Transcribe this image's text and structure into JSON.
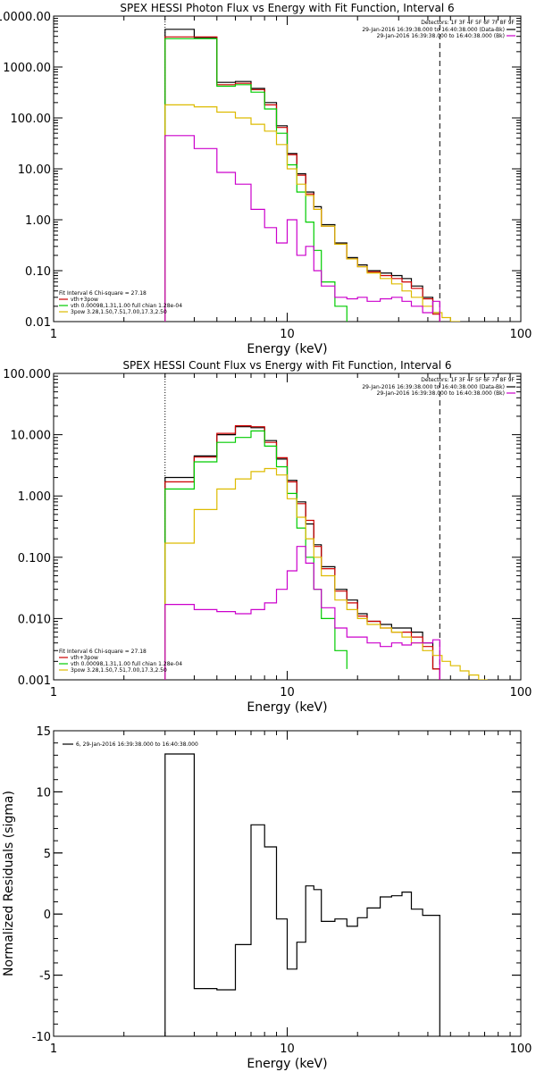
{
  "chart_data": [
    {
      "type": "line",
      "title": "SPEX HESSI Photon Flux vs Energy with Fit Function, Interval 6",
      "xlabel": "Energy (keV)",
      "ylabel": "",
      "xscale": "log",
      "yscale": "log",
      "xlim": [
        1,
        100
      ],
      "ylim": [
        0.01,
        10000
      ],
      "xticks": [
        {
          "v": 1,
          "label": "1"
        },
        {
          "v": 10,
          "label": "10"
        },
        {
          "v": 100,
          "label": "100"
        }
      ],
      "yticks": [
        {
          "v": 10000,
          "label": "10000.00"
        },
        {
          "v": 1000,
          "label": "1000.00"
        },
        {
          "v": 100,
          "label": "100.00"
        },
        {
          "v": 10,
          "label": "10.00"
        },
        {
          "v": 1,
          "label": "1.00"
        },
        {
          "v": 0.1,
          "label": "0.10"
        },
        {
          "v": 0.01,
          "label": "0.01"
        }
      ],
      "vlines": [
        {
          "x": 3.0,
          "style": "dotted"
        },
        {
          "x": 45,
          "style": "dashed"
        }
      ],
      "legend_topright": {
        "detectors": "Detectors: 1F 3F 4F 5F 6F 7F 8F 9F",
        "entries": [
          {
            "text": "29-Jan-2016 16:39:38.000 to 16:40:38.000 (Data-Bk)",
            "color": "#000000"
          },
          {
            "text": "29-Jan-2016 16:39:38.000 to 16:40:38.000 (Bk)",
            "color": "#cc00cc"
          }
        ]
      },
      "legend_bottomleft": {
        "header": "Fit Interval 6   Chi-square = 27.18",
        "entries": [
          {
            "text": "vth+3pow",
            "color": "#cc0000"
          },
          {
            "text": "vth 0.00098,1.31,1.00   full chian 1.28e-04",
            "color": "#00cc00"
          },
          {
            "text": "3pow 3.28,1.50,7.51,7.00,17.3,2.50",
            "color": "#ddbb00"
          }
        ]
      },
      "series": [
        {
          "color": "#000000",
          "edges": [
            3.0,
            4.0,
            5.0,
            6.0,
            7.0,
            8.0,
            9.0,
            10.0,
            11.0,
            12.0,
            13.0,
            14.0,
            16.0,
            18.0,
            20.0,
            22.0,
            25.0,
            28.0,
            31.0,
            34.0,
            38.0,
            42.0,
            45.0
          ],
          "values": [
            5500,
            3800,
            500,
            520,
            380,
            200,
            70,
            20,
            8,
            3.5,
            1.8,
            0.8,
            0.35,
            0.18,
            0.13,
            0.1,
            0.09,
            0.08,
            0.07,
            0.05,
            0.03,
            0.015
          ]
        },
        {
          "color": "#cc0000",
          "edges": [
            3.0,
            4.0,
            5.0,
            6.0,
            7.0,
            8.0,
            9.0,
            10.0,
            11.0,
            12.0,
            13.0,
            14.0,
            16.0,
            18.0,
            20.0,
            22.0,
            25.0,
            28.0,
            31.0,
            34.0,
            38.0,
            42.0,
            45.0
          ],
          "values": [
            3900,
            3900,
            450,
            480,
            360,
            180,
            65,
            19,
            7.5,
            3.2,
            1.6,
            0.75,
            0.33,
            0.17,
            0.12,
            0.095,
            0.08,
            0.07,
            0.06,
            0.045,
            0.028,
            0.014
          ]
        },
        {
          "color": "#00cc00",
          "edges": [
            3.0,
            4.0,
            5.0,
            6.0,
            7.0,
            8.0,
            9.0,
            10.0,
            11.0,
            12.0,
            13.0,
            14.0,
            16.0,
            18.0
          ],
          "values": [
            3600,
            3600,
            420,
            450,
            320,
            150,
            50,
            12,
            3.5,
            0.9,
            0.25,
            0.06,
            0.02
          ]
        },
        {
          "color": "#ddbb00",
          "edges": [
            3.0,
            4.0,
            5.0,
            6.0,
            7.0,
            8.0,
            9.0,
            10.0,
            11.0,
            12.0,
            13.0,
            14.0,
            16.0,
            18.0,
            20.0,
            22.0,
            25.0,
            28.0,
            31.0,
            34.0,
            38.0,
            42.0,
            46.0,
            50.0,
            55.0
          ],
          "values": [
            180,
            165,
            130,
            100,
            75,
            55,
            30,
            10,
            5,
            3,
            1.6,
            0.75,
            0.33,
            0.17,
            0.12,
            0.09,
            0.07,
            0.055,
            0.04,
            0.03,
            0.02,
            0.015,
            0.012,
            0.01
          ]
        },
        {
          "color": "#cc00cc",
          "edges": [
            3.0,
            4.0,
            5.0,
            6.0,
            7.0,
            8.0,
            9.0,
            10.0,
            11.0,
            12.0,
            13.0,
            14.0,
            16.0,
            18.0,
            20.0,
            22.0,
            25.0,
            28.0,
            31.0,
            34.0,
            38.0,
            42.0,
            45.0
          ],
          "values": [
            45,
            25,
            8.5,
            5,
            1.6,
            0.7,
            0.35,
            1.0,
            0.2,
            0.3,
            0.1,
            0.05,
            0.03,
            0.028,
            0.03,
            0.025,
            0.028,
            0.03,
            0.025,
            0.02,
            0.015,
            0.025
          ]
        }
      ]
    },
    {
      "type": "line",
      "title": "SPEX HESSI Count Flux vs Energy with Fit Function, Interval 6",
      "xlabel": "Energy (keV)",
      "ylabel": "",
      "xscale": "log",
      "yscale": "log",
      "xlim": [
        1,
        100
      ],
      "ylim": [
        0.001,
        100
      ],
      "xticks": [
        {
          "v": 1,
          "label": "1"
        },
        {
          "v": 10,
          "label": "10"
        },
        {
          "v": 100,
          "label": "100"
        }
      ],
      "yticks": [
        {
          "v": 100,
          "label": "100.000"
        },
        {
          "v": 10,
          "label": "10.000"
        },
        {
          "v": 1,
          "label": "1.000"
        },
        {
          "v": 0.1,
          "label": "0.100"
        },
        {
          "v": 0.01,
          "label": "0.010"
        },
        {
          "v": 0.001,
          "label": "0.001"
        }
      ],
      "vlines": [
        {
          "x": 3.0,
          "style": "dotted"
        },
        {
          "x": 45,
          "style": "dashed"
        }
      ],
      "legend_topright": {
        "detectors": "Detectors: 1F 3F 4F 5F 6F 7F 8F 9F",
        "entries": [
          {
            "text": "29-Jan-2016 16:39:38.000 to 16:40:38.000 (Data-Bk)",
            "color": "#000000"
          },
          {
            "text": "29-Jan-2016 16:39:38.000 to 16:40:38.000 (Bk)",
            "color": "#cc00cc"
          }
        ]
      },
      "legend_bottomleft": {
        "header": "Fit Interval 6   Chi-square = 27.18",
        "entries": [
          {
            "text": "vth+3pow",
            "color": "#cc0000"
          },
          {
            "text": "vth 0.00098,1.31,1.00   full chian 1.28e-04",
            "color": "#00cc00"
          },
          {
            "text": "3pow 3.28,1.50,7.51,7.00,17.3,2.50",
            "color": "#ddbb00"
          }
        ]
      },
      "series": [
        {
          "color": "#000000",
          "edges": [
            3.0,
            4.0,
            5.0,
            6.0,
            7.0,
            8.0,
            9.0,
            10.0,
            11.0,
            12.0,
            13.0,
            14.0,
            16.0,
            18.0,
            20.0,
            22.0,
            25.0,
            28.0,
            31.0,
            34.0,
            38.0,
            42.0,
            45.0
          ],
          "values": [
            2.0,
            4.5,
            10,
            13.5,
            13,
            8,
            4,
            1.8,
            0.8,
            0.35,
            0.16,
            0.07,
            0.03,
            0.02,
            0.012,
            0.009,
            0.008,
            0.007,
            0.007,
            0.006,
            0.004,
            0.0015
          ]
        },
        {
          "color": "#cc0000",
          "edges": [
            3.0,
            4.0,
            5.0,
            6.0,
            7.0,
            8.0,
            9.0,
            10.0,
            11.0,
            12.0,
            13.0,
            14.0,
            16.0,
            18.0,
            20.0,
            22.0,
            25.0,
            28.0,
            31.0,
            34.0,
            38.0,
            42.0,
            45.0
          ],
          "values": [
            1.7,
            4.3,
            10.5,
            14,
            13.5,
            7.5,
            4.2,
            1.7,
            0.75,
            0.4,
            0.15,
            0.065,
            0.028,
            0.018,
            0.011,
            0.009,
            0.007,
            0.006,
            0.006,
            0.005,
            0.0035,
            0.0015
          ]
        },
        {
          "color": "#00cc00",
          "edges": [
            3.0,
            4.0,
            5.0,
            6.0,
            7.0,
            8.0,
            9.0,
            10.0,
            11.0,
            12.0,
            13.0,
            14.0,
            16.0,
            18.0
          ],
          "values": [
            1.3,
            3.6,
            7.5,
            9,
            11.5,
            6.5,
            3.0,
            1.1,
            0.3,
            0.1,
            0.03,
            0.01,
            0.003,
            0.0015
          ]
        },
        {
          "color": "#ddbb00",
          "edges": [
            3.0,
            4.0,
            5.0,
            6.0,
            7.0,
            8.0,
            9.0,
            10.0,
            11.0,
            12.0,
            13.0,
            14.0,
            16.0,
            18.0,
            20.0,
            22.0,
            25.0,
            28.0,
            31.0,
            34.0,
            38.0,
            42.0,
            46.0,
            50.0,
            55.0,
            60.0,
            66.0,
            72.0
          ],
          "values": [
            0.17,
            0.6,
            1.3,
            1.9,
            2.5,
            2.8,
            2.2,
            0.9,
            0.45,
            0.2,
            0.1,
            0.05,
            0.02,
            0.014,
            0.01,
            0.008,
            0.007,
            0.006,
            0.005,
            0.004,
            0.003,
            0.0025,
            0.002,
            0.0017,
            0.0014,
            0.0012,
            0.001
          ]
        },
        {
          "color": "#cc00cc",
          "edges": [
            3.0,
            4.0,
            5.0,
            6.0,
            7.0,
            8.0,
            9.0,
            10.0,
            11.0,
            12.0,
            13.0,
            14.0,
            16.0,
            18.0,
            20.0,
            22.0,
            25.0,
            28.0,
            31.0,
            34.0,
            38.0,
            42.0,
            45.0
          ],
          "values": [
            0.017,
            0.014,
            0.013,
            0.012,
            0.014,
            0.018,
            0.03,
            0.06,
            0.15,
            0.08,
            0.03,
            0.015,
            0.007,
            0.005,
            0.005,
            0.004,
            0.0035,
            0.004,
            0.0037,
            0.004,
            0.004,
            0.0045
          ]
        }
      ]
    },
    {
      "type": "line",
      "title": "",
      "xlabel": "Energy (keV)",
      "ylabel": "Normalized Residuals (sigma)",
      "xscale": "log",
      "yscale": "linear",
      "xlim": [
        1,
        100
      ],
      "ylim": [
        -10,
        15
      ],
      "xticks": [
        {
          "v": 1,
          "label": "1"
        },
        {
          "v": 10,
          "label": "10"
        },
        {
          "v": 100,
          "label": "100"
        }
      ],
      "yticks": [
        {
          "v": 15,
          "label": "15"
        },
        {
          "v": 10,
          "label": "10"
        },
        {
          "v": 5,
          "label": "5"
        },
        {
          "v": 0,
          "label": "0"
        },
        {
          "v": -5,
          "label": "-5"
        },
        {
          "v": -10,
          "label": "-10"
        }
      ],
      "legend_topleft": {
        "entries": [
          {
            "text": "6, 29-Jan-2016 16:39:38.000 to 16:40:38.000",
            "color": "#000000"
          }
        ]
      },
      "series": [
        {
          "color": "#000000",
          "edges": [
            3.0,
            4.0,
            5.0,
            6.0,
            7.0,
            8.0,
            9.0,
            10.0,
            11.0,
            12.0,
            13.0,
            14.0,
            16.0,
            18.0,
            20.0,
            22.0,
            25.0,
            28.0,
            31.0,
            34.0,
            38.0,
            42.0,
            45.0
          ],
          "values": [
            13.1,
            -6.1,
            -6.2,
            -2.5,
            7.3,
            5.5,
            -0.4,
            -4.5,
            -2.3,
            2.3,
            2.0,
            -0.6,
            -0.4,
            -1.0,
            -0.3,
            0.5,
            1.4,
            1.5,
            1.8,
            0.4,
            -0.1,
            -0.1
          ]
        }
      ]
    }
  ]
}
